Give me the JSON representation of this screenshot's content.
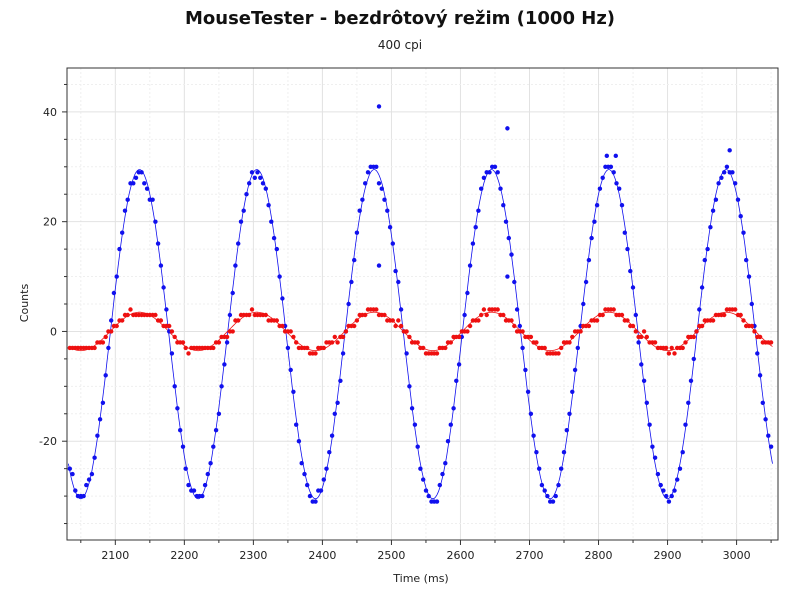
{
  "chart_data": {
    "type": "scatter",
    "title": "MouseTester - bezdrôtový režim (1000 Hz)",
    "subtitle": "400 cpi",
    "xlabel": "Time (ms)",
    "ylabel": "Counts",
    "xlim": [
      2030,
      3060
    ],
    "ylim": [
      -38,
      48
    ],
    "xticks": [
      2100,
      2200,
      2300,
      2400,
      2500,
      2600,
      2700,
      2800,
      2900,
      3000
    ],
    "yticks": [
      -20,
      0,
      20,
      40
    ],
    "grid": true,
    "series": [
      {
        "color": "#1010ee",
        "wave": {
          "period": 170,
          "peak_x": 2135,
          "amplitude": 30,
          "offset": -0.5,
          "end_x": 3053,
          "step": 4
        },
        "outliers": [
          {
            "x": 2482,
            "y": 41
          },
          {
            "x": 2668,
            "y": 37
          },
          {
            "x": 2990,
            "y": 33
          },
          {
            "x": 2812,
            "y": 32
          },
          {
            "x": 2825,
            "y": 32
          },
          {
            "x": 2482,
            "y": 12
          },
          {
            "x": 2668,
            "y": 10
          }
        ]
      },
      {
        "color": "#ee1010",
        "wave": {
          "period": 170,
          "peak_x": 2135,
          "amplitude": 3.5,
          "offset": 0,
          "end_x": 3053,
          "step": 4
        }
      }
    ]
  }
}
